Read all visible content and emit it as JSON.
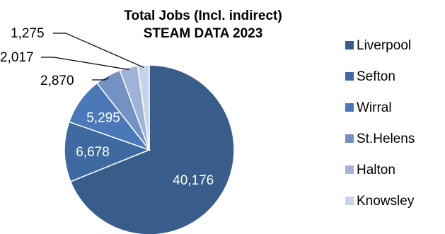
{
  "chart_data": {
    "type": "pie",
    "title": [
      "Total Jobs (Incl. indirect)",
      "STEAM DATA 2023"
    ],
    "series": [
      {
        "name": "Liverpool",
        "value": 40176,
        "label": "40,176",
        "color": "#385d8a"
      },
      {
        "name": "Sefton",
        "value": 6678,
        "label": "6,678",
        "color": "#3f6aa1"
      },
      {
        "name": "Wirral",
        "value": 5295,
        "label": "5,295",
        "color": "#4a78b8"
      },
      {
        "name": "St.Helens",
        "value": 2870,
        "label": "2,870",
        "color": "#7391c2"
      },
      {
        "name": "Halton",
        "value": 2017,
        "label": "2,017",
        "color": "#9fb3d8"
      },
      {
        "name": "Knowsley",
        "value": 1275,
        "label": "1,275",
        "color": "#c7d3e9"
      }
    ],
    "start_angle": "12 o'clock",
    "direction": "clockwise",
    "legend_position": "right"
  }
}
